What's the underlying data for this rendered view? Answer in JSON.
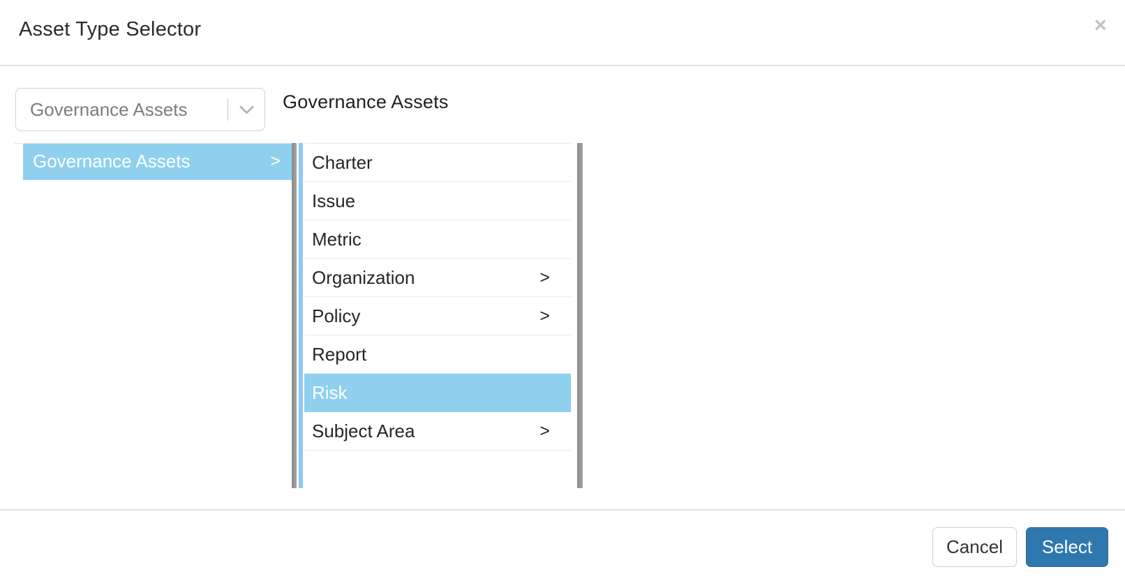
{
  "dialog": {
    "title": "Asset Type Selector",
    "close_icon": "×"
  },
  "picker": {
    "dropdown_value": "Governance Assets",
    "path_label": "Governance Assets"
  },
  "browser": {
    "child_indicator": ">",
    "columns": [
      {
        "items": [
          {
            "label": "Governance Assets",
            "has_children": true,
            "selected": true
          }
        ]
      },
      {
        "items": [
          {
            "label": "Charter",
            "has_children": false,
            "selected": false
          },
          {
            "label": "Issue",
            "has_children": false,
            "selected": false
          },
          {
            "label": "Metric",
            "has_children": false,
            "selected": false
          },
          {
            "label": "Organization",
            "has_children": true,
            "selected": false
          },
          {
            "label": "Policy",
            "has_children": true,
            "selected": false
          },
          {
            "label": "Report",
            "has_children": false,
            "selected": false
          },
          {
            "label": "Risk",
            "has_children": false,
            "selected": true
          },
          {
            "label": "Subject Area",
            "has_children": true,
            "selected": false
          }
        ]
      }
    ]
  },
  "footer": {
    "cancel_label": "Cancel",
    "select_label": "Select"
  },
  "colors": {
    "selection_highlight": "#8fd0ee",
    "active_column_stripe": "#8ec7f7",
    "primary_button": "#2f78ad",
    "scrollbar": "#9b9b9b"
  }
}
